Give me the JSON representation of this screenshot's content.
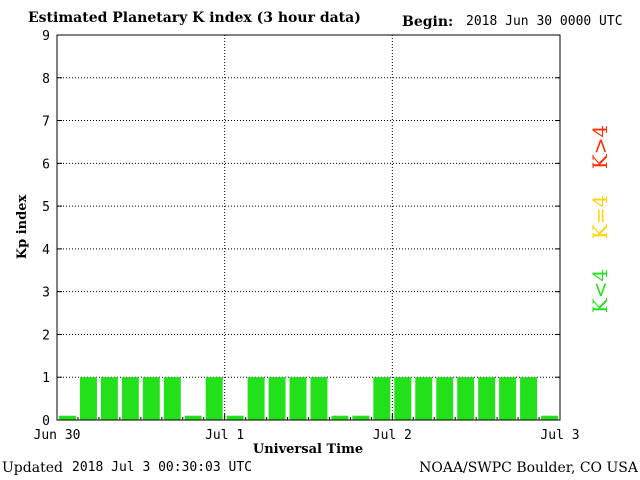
{
  "header": {
    "title": "Estimated Planetary K index (3 hour data)",
    "begin_label": "Begin:",
    "begin_value": "2018 Jun 30 0000 UTC"
  },
  "footer": {
    "updated_label": "Updated",
    "updated_value": "2018 Jul  3 00:30:03 UTC",
    "credit": "NOAA/SWPC Boulder, CO USA"
  },
  "legend": [
    {
      "label": "K>4",
      "color": "#ff2a00"
    },
    {
      "label": "K=4",
      "color": "#ffd200"
    },
    {
      "label": "K<4",
      "color": "#22e01a"
    }
  ],
  "chart_data": {
    "type": "bar",
    "title": "Estimated Planetary K index (3 hour data)",
    "xlabel": "Universal Time",
    "ylabel": "Kp index",
    "ylim": [
      0,
      9
    ],
    "yticks": [
      "0",
      "1",
      "2",
      "3",
      "4",
      "5",
      "6",
      "7",
      "8",
      "9"
    ],
    "xticks": [
      "Jun 30",
      "Jul 1",
      "Jul 2",
      "Jul 3"
    ],
    "grid": true,
    "bar_color": "#22e01a",
    "interval_hours": 3,
    "values": [
      0.1,
      1,
      1,
      1,
      1,
      1,
      0.1,
      1,
      0.1,
      1,
      1,
      1,
      1,
      0.1,
      0.1,
      1,
      1,
      1,
      1,
      1,
      1,
      1,
      1,
      0.1
    ]
  }
}
